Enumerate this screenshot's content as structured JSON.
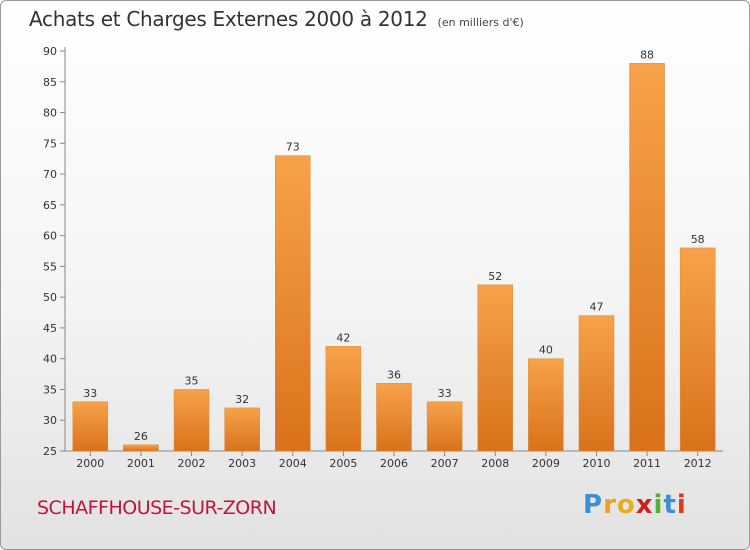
{
  "header": {
    "title": "Achats et Charges Externes 2000 à 2012",
    "unit": "(en milliers d'€)"
  },
  "footer": {
    "city": "SCHAFFHOUSE-SUR-ZORN",
    "logo_letters": [
      "P",
      "r",
      "o",
      "x",
      "i",
      "t",
      "i"
    ],
    "logo_colors": [
      "#3a8fd6",
      "#f0a020",
      "#e0b020",
      "#d0201c",
      "#58b030",
      "#3a8fd6",
      "#e03a1a"
    ]
  },
  "chart_data": {
    "type": "bar",
    "categories": [
      "2000",
      "2001",
      "2002",
      "2003",
      "2004",
      "2005",
      "2006",
      "2007",
      "2008",
      "2009",
      "2010",
      "2011",
      "2012"
    ],
    "values": [
      33,
      26,
      35,
      32,
      73,
      42,
      36,
      33,
      52,
      40,
      47,
      88,
      58
    ],
    "title": "Achats et Charges Externes 2000 à 2012",
    "ylim": [
      25,
      90
    ],
    "yticks": [
      25,
      30,
      35,
      40,
      45,
      50,
      55,
      60,
      65,
      70,
      75,
      80,
      85,
      90
    ],
    "grid": false,
    "bar_color": "#f0932e"
  }
}
